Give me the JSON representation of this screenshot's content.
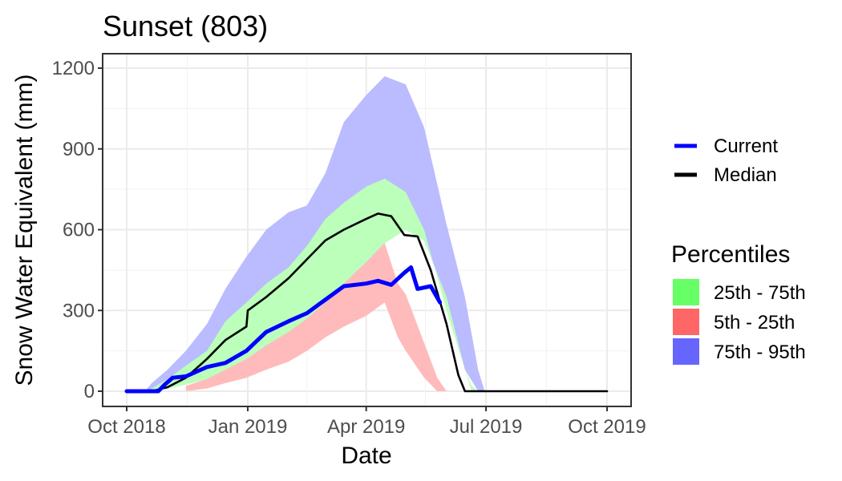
{
  "chart_data": {
    "type": "area",
    "title": "Sunset (803)",
    "xlabel": "Date",
    "ylabel": "Snow Water Equivalent (mm)",
    "xlim": [
      "2018-10-01",
      "2019-10-01"
    ],
    "ylim": [
      0,
      1200
    ],
    "x_ticks": [
      "Oct 2018",
      "Jan 2019",
      "Apr 2019",
      "Jul 2019",
      "Oct 2019"
    ],
    "y_ticks": [
      "0",
      "300",
      "600",
      "900",
      "1200"
    ],
    "grid": true,
    "legend_position": "right",
    "lines_legend": [
      {
        "name": "Current",
        "color": "#0000ff"
      },
      {
        "name": "Median",
        "color": "#000000"
      }
    ],
    "percentile_legend_title": "Percentiles",
    "bands_legend": [
      {
        "name": "25th - 75th",
        "color": "#66ff66"
      },
      {
        "name": "5th - 25th",
        "color": "#ff6666"
      },
      {
        "name": "75th - 95th",
        "color": "#6666ff"
      }
    ],
    "bands": [
      {
        "name": "75th - 95th",
        "fill": "#bbbbff",
        "points": [
          [
            "2018-10-01",
            0,
            0
          ],
          [
            "2018-10-15",
            0,
            0
          ],
          [
            "2018-10-20",
            0,
            30
          ],
          [
            "2018-11-01",
            10,
            80
          ],
          [
            "2018-11-15",
            25,
            150
          ],
          [
            "2018-12-01",
            45,
            250
          ],
          [
            "2018-12-15",
            80,
            380
          ],
          [
            "2018-12-31",
            120,
            500
          ],
          [
            "2019-01-15",
            170,
            600
          ],
          [
            "2019-02-01",
            220,
            665
          ],
          [
            "2019-02-15",
            270,
            690
          ],
          [
            "2019-03-01",
            330,
            810
          ],
          [
            "2019-03-15",
            400,
            1000
          ],
          [
            "2019-04-01",
            480,
            1100
          ],
          [
            "2019-04-15",
            550,
            1170
          ],
          [
            "2019-05-01",
            600,
            1140
          ],
          [
            "2019-05-15",
            560,
            980
          ],
          [
            "2019-06-01",
            350,
            620
          ],
          [
            "2019-06-15",
            80,
            350
          ],
          [
            "2019-06-25",
            0,
            80
          ],
          [
            "2019-06-30",
            0,
            0
          ],
          [
            "2019-10-01",
            0,
            0
          ]
        ]
      },
      {
        "name": "25th - 75th",
        "fill": "#bbffbb",
        "points": [
          [
            "2018-10-01",
            0,
            0
          ],
          [
            "2018-10-15",
            0,
            0
          ],
          [
            "2018-10-20",
            0,
            10
          ],
          [
            "2018-11-01",
            10,
            45
          ],
          [
            "2018-11-15",
            25,
            95
          ],
          [
            "2018-12-01",
            45,
            150
          ],
          [
            "2018-12-15",
            80,
            260
          ],
          [
            "2018-12-31",
            120,
            330
          ],
          [
            "2019-01-15",
            170,
            400
          ],
          [
            "2019-02-01",
            220,
            460
          ],
          [
            "2019-02-15",
            270,
            540
          ],
          [
            "2019-03-01",
            330,
            640
          ],
          [
            "2019-03-15",
            400,
            700
          ],
          [
            "2019-04-01",
            480,
            760
          ],
          [
            "2019-04-15",
            550,
            790
          ],
          [
            "2019-05-01",
            600,
            740
          ],
          [
            "2019-05-15",
            560,
            600
          ],
          [
            "2019-06-01",
            350,
            300
          ],
          [
            "2019-06-15",
            80,
            80
          ],
          [
            "2019-06-20",
            0,
            20
          ],
          [
            "2019-06-25",
            0,
            0
          ],
          [
            "2019-10-01",
            0,
            0
          ]
        ]
      },
      {
        "name": "5th - 25th",
        "fill": "#ffbbbb",
        "points": [
          [
            "2018-11-15",
            0,
            20
          ],
          [
            "2018-12-01",
            10,
            45
          ],
          [
            "2018-12-15",
            30,
            80
          ],
          [
            "2018-12-31",
            50,
            120
          ],
          [
            "2019-01-15",
            80,
            170
          ],
          [
            "2019-02-01",
            110,
            220
          ],
          [
            "2019-02-15",
            150,
            270
          ],
          [
            "2019-03-01",
            200,
            330
          ],
          [
            "2019-03-15",
            240,
            400
          ],
          [
            "2019-04-01",
            280,
            480
          ],
          [
            "2019-04-15",
            330,
            550
          ],
          [
            "2019-04-25",
            200,
            400
          ],
          [
            "2019-05-01",
            150,
            360
          ],
          [
            "2019-05-15",
            50,
            180
          ],
          [
            "2019-05-25",
            0,
            50
          ],
          [
            "2019-06-01",
            0,
            0
          ]
        ]
      }
    ],
    "series": [
      {
        "name": "Median",
        "color": "#000000",
        "points": [
          [
            "2018-10-01",
            0
          ],
          [
            "2018-10-20",
            0
          ],
          [
            "2018-11-01",
            15
          ],
          [
            "2018-11-15",
            50
          ],
          [
            "2018-12-01",
            120
          ],
          [
            "2018-12-15",
            190
          ],
          [
            "2018-12-31",
            240
          ],
          [
            "2019-01-01",
            300
          ],
          [
            "2019-01-15",
            350
          ],
          [
            "2019-02-01",
            420
          ],
          [
            "2019-02-15",
            490
          ],
          [
            "2019-03-01",
            560
          ],
          [
            "2019-03-15",
            600
          ],
          [
            "2019-04-01",
            640
          ],
          [
            "2019-04-10",
            660
          ],
          [
            "2019-04-20",
            650
          ],
          [
            "2019-04-30",
            580
          ],
          [
            "2019-05-10",
            575
          ],
          [
            "2019-05-20",
            450
          ],
          [
            "2019-06-01",
            250
          ],
          [
            "2019-06-10",
            60
          ],
          [
            "2019-06-15",
            0
          ],
          [
            "2019-10-01",
            0
          ]
        ]
      },
      {
        "name": "Current",
        "color": "#0000ff",
        "points": [
          [
            "2018-10-01",
            0
          ],
          [
            "2018-10-25",
            0
          ],
          [
            "2018-10-30",
            25
          ],
          [
            "2018-11-05",
            50
          ],
          [
            "2018-11-15",
            55
          ],
          [
            "2018-12-01",
            90
          ],
          [
            "2018-12-15",
            105
          ],
          [
            "2018-12-31",
            150
          ],
          [
            "2019-01-15",
            220
          ],
          [
            "2019-02-01",
            260
          ],
          [
            "2019-02-15",
            290
          ],
          [
            "2019-03-01",
            340
          ],
          [
            "2019-03-15",
            390
          ],
          [
            "2019-04-01",
            400
          ],
          [
            "2019-04-10",
            410
          ],
          [
            "2019-04-20",
            395
          ],
          [
            "2019-04-30",
            440
          ],
          [
            "2019-05-05",
            460
          ],
          [
            "2019-05-10",
            380
          ],
          [
            "2019-05-20",
            390
          ],
          [
            "2019-05-27",
            330
          ]
        ]
      }
    ]
  }
}
